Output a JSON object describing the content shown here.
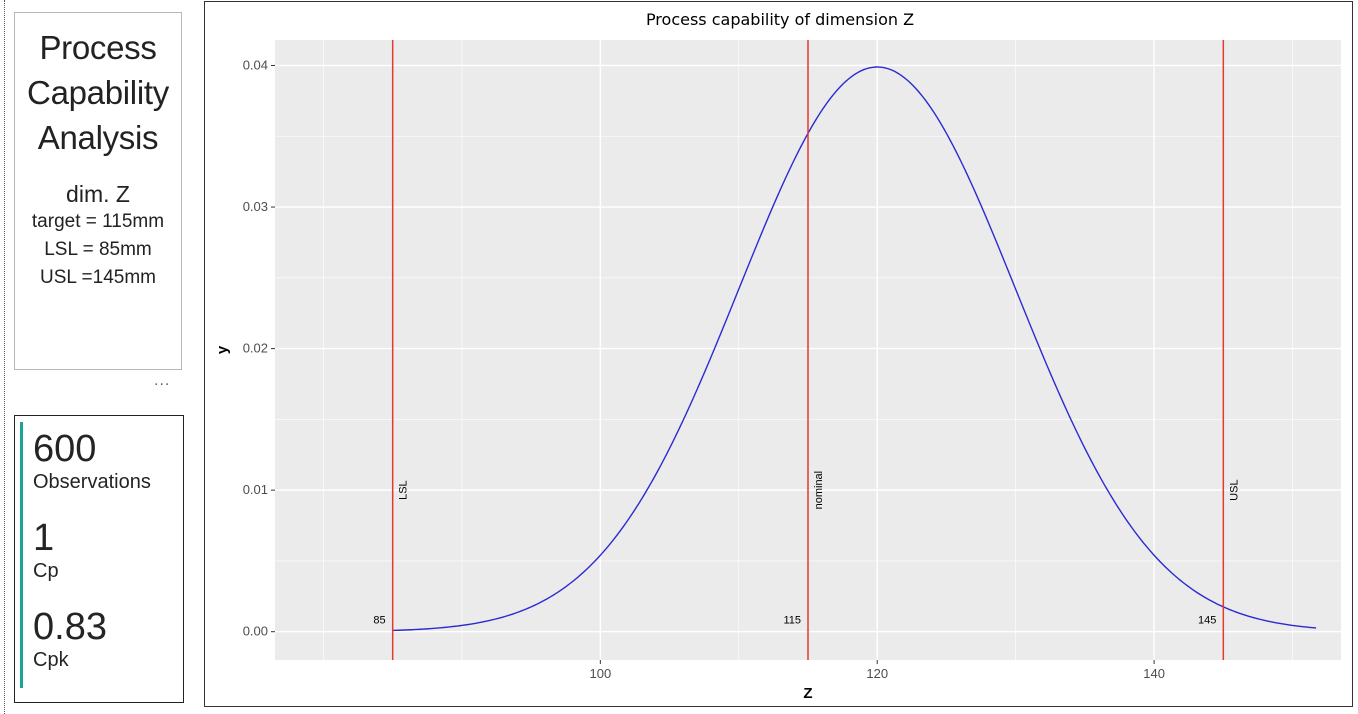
{
  "sidebar": {
    "title_lines": [
      "Process",
      "Capability",
      "Analysis"
    ],
    "dimension": "dim. Z",
    "target": "target = 115mm",
    "lsl": "LSL = 85mm",
    "usl": "USL =145mm",
    "more_label": "...",
    "kpis": [
      {
        "value": "600",
        "label": "Observations"
      },
      {
        "value": "1",
        "label": "Cp"
      },
      {
        "value": "0.83",
        "label": "Cpk"
      }
    ],
    "accent_color": "#1ba39c"
  },
  "chart_data": {
    "type": "line",
    "title": "Process capability of dimension Z",
    "xlabel": "Z",
    "ylabel": "y",
    "xlim": [
      76.5,
      153.5
    ],
    "ylim": [
      -0.002,
      0.0418
    ],
    "xticks": [
      100,
      120,
      140
    ],
    "yticks": [
      0.0,
      0.01,
      0.02,
      0.03,
      0.04
    ],
    "ytick_labels": [
      "0.00",
      "0.01",
      "0.02",
      "0.03",
      "0.04"
    ],
    "grid": true,
    "series": [
      {
        "color": "#2b2bd1",
        "distribution": "normal",
        "mean": 120,
        "sd": 10,
        "x_range": [
          85,
          151.7
        ]
      }
    ],
    "vlines": [
      {
        "x": 85,
        "label": "LSL",
        "value_label": "85"
      },
      {
        "x": 115,
        "label": "nominal",
        "value_label": "115"
      },
      {
        "x": 145,
        "label": "USL",
        "value_label": "145"
      }
    ],
    "vline_color": "#e8372c",
    "panel_color": "#ebebeb"
  }
}
